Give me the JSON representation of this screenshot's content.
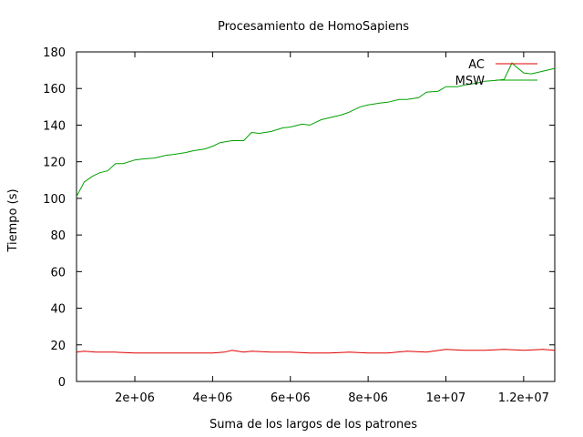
{
  "chart_data": {
    "type": "line",
    "title": "Procesamiento de HomoSapiens",
    "xlabel": "Suma de los largos de los patrones",
    "ylabel": "Tiempo (s)",
    "xlim": [
      500000,
      12800000
    ],
    "ylim": [
      0,
      180
    ],
    "xticks": [
      2000000,
      4000000,
      6000000,
      8000000,
      10000000,
      12000000
    ],
    "xtick_labels": [
      "2e+06",
      "4e+06",
      "6e+06",
      "8e+06",
      "1e+07",
      "1.2e+07"
    ],
    "yticks": [
      0,
      20,
      40,
      60,
      80,
      100,
      120,
      140,
      160,
      180
    ],
    "ytick_labels": [
      "0",
      "20",
      "40",
      "60",
      "80",
      "100",
      "120",
      "140",
      "160",
      "180"
    ],
    "grid": false,
    "legend": "top-right",
    "series": [
      {
        "name": "AC",
        "color": "#e00000",
        "x": [
          500000,
          700000,
          1000000,
          1500000,
          2000000,
          2500000,
          3000000,
          3500000,
          4000000,
          4300000,
          4500000,
          4800000,
          5000000,
          5500000,
          6000000,
          6500000,
          7000000,
          7500000,
          8000000,
          8500000,
          9000000,
          9500000,
          10000000,
          10500000,
          11000000,
          11500000,
          12000000,
          12500000,
          12800000
        ],
        "y": [
          16,
          16.5,
          16,
          16,
          15.5,
          15.5,
          15.5,
          15.5,
          15.5,
          16,
          17,
          16,
          16.5,
          16,
          16,
          15.5,
          15.5,
          16,
          15.5,
          15.5,
          16.5,
          16,
          17.5,
          17,
          17,
          17.5,
          17,
          17.5,
          17
        ]
      },
      {
        "name": "MSW",
        "color": "#00a000",
        "x": [
          500000,
          700000,
          900000,
          1100000,
          1300000,
          1500000,
          1700000,
          2000000,
          2200000,
          2500000,
          2800000,
          3000000,
          3300000,
          3500000,
          3800000,
          4000000,
          4200000,
          4500000,
          4800000,
          5000000,
          5200000,
          5500000,
          5800000,
          6000000,
          6300000,
          6500000,
          6800000,
          7000000,
          7300000,
          7500000,
          7800000,
          8000000,
          8300000,
          8500000,
          8800000,
          9000000,
          9300000,
          9500000,
          9800000,
          10000000,
          10300000,
          10500000,
          10800000,
          11000000,
          11300000,
          11500000,
          11700000,
          11800000,
          12000000,
          12200000,
          12500000,
          12800000
        ],
        "y": [
          101,
          109,
          112,
          114,
          115,
          119,
          119,
          121,
          121.5,
          122,
          123.5,
          124,
          125,
          126,
          127,
          128.5,
          130.5,
          131.5,
          131.5,
          136,
          135.5,
          136.5,
          138.5,
          139,
          140.5,
          140,
          143,
          144,
          145.5,
          147,
          150,
          151,
          152,
          152.5,
          154,
          154,
          155,
          158,
          158.5,
          161,
          161,
          162,
          163,
          164,
          164.5,
          165,
          174,
          172,
          168.5,
          168,
          169.5,
          171
        ]
      }
    ]
  }
}
